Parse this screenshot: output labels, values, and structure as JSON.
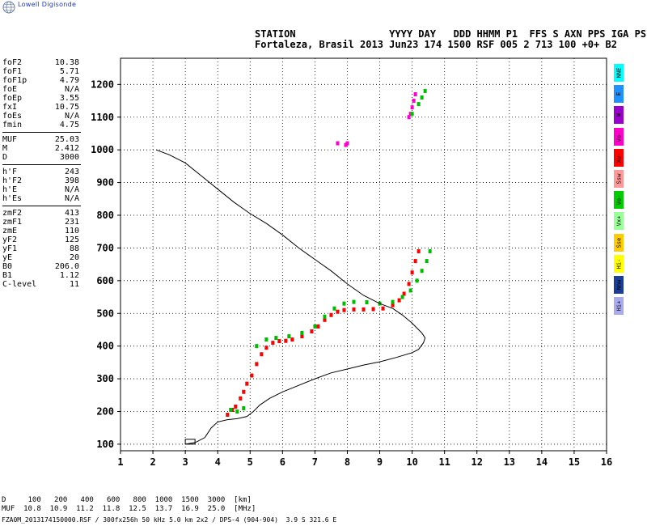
{
  "logo": {
    "text": "Lowell Digisonde"
  },
  "header": {
    "line1": "STATION                YYYY DAY   DDD HHMM P1  FFS S AXN PPS IGA PS",
    "line2": "Fortaleza, Brasil 2013 Jun23 174 1500 RSF 005 2 713 100 +0+ B2"
  },
  "parameters": [
    {
      "name": "foF2",
      "value": "10.38"
    },
    {
      "name": "foF1",
      "value": "5.71"
    },
    {
      "name": "foF1p",
      "value": "4.79"
    },
    {
      "name": "foE",
      "value": "N/A"
    },
    {
      "name": "foEp",
      "value": "3.55"
    },
    {
      "name": "fxI",
      "value": "10.75"
    },
    {
      "name": "foEs",
      "value": "N/A"
    },
    {
      "name": "fmin",
      "value": "4.75"
    },
    {
      "name": "MUF",
      "value": "25.03"
    },
    {
      "name": "M",
      "value": "2.412"
    },
    {
      "name": "D",
      "value": "3000"
    },
    {
      "name": "h'F",
      "value": "243"
    },
    {
      "name": "h'F2",
      "value": "398"
    },
    {
      "name": "h'E",
      "value": "N/A"
    },
    {
      "name": "h'Es",
      "value": "N/A"
    },
    {
      "name": "zmF2",
      "value": "413"
    },
    {
      "name": "zmF1",
      "value": "231"
    },
    {
      "name": "zmE",
      "value": "110"
    },
    {
      "name": "yF2",
      "value": "125"
    },
    {
      "name": "yF1",
      "value": "88"
    },
    {
      "name": "yE",
      "value": "20"
    },
    {
      "name": "B0",
      "value": "206.0"
    },
    {
      "name": "B1",
      "value": "1.12"
    },
    {
      "name": "C-level",
      "value": "11"
    }
  ],
  "legend": [
    {
      "label": "NNE",
      "color": "#00ffff"
    },
    {
      "label": "E",
      "color": "#1e90ff"
    },
    {
      "label": "W",
      "color": "#9900cc"
    },
    {
      "label": "Vo-",
      "color": "#ff00cc"
    },
    {
      "label": "Xo-",
      "color": "#ff0000"
    },
    {
      "label": "Ssw",
      "color": "#ff9999"
    },
    {
      "label": "Vo-",
      "color": "#00cc00"
    },
    {
      "label": "Vx+",
      "color": "#99ff99"
    },
    {
      "label": "Sse",
      "color": "#ffcc00"
    },
    {
      "label": "Hi-",
      "color": "#ffff00"
    },
    {
      "label": "Nnw",
      "color": "#1a3d99"
    },
    {
      "label": "Hi+",
      "color": "#aaaaee"
    }
  ],
  "footer": {
    "line1": "D     100   200   400   600   800  1000  1500  3000  [km]",
    "line2": "MUF  10.8  10.9  11.2  11.8  12.5  13.7  16.9  25.0  [MHz]",
    "line3": "FZA0M_2013174150000.RSF / 300fx256h 50 kHz 5.0 km 2x2 / DPS-4 (904-904)  3.9 S 321.6 E"
  },
  "chart_data": {
    "type": "scatter",
    "xlim": [
      1,
      16
    ],
    "ylim": [
      80,
      1280
    ],
    "x_ticks": [
      1,
      2,
      3,
      4,
      5,
      6,
      7,
      8,
      9,
      10,
      11,
      12,
      13,
      14,
      15,
      16
    ],
    "y_ticks": [
      100,
      200,
      300,
      400,
      500,
      600,
      700,
      800,
      900,
      1000,
      1100,
      1200
    ],
    "grid": true,
    "series": [
      {
        "color": "#ff0000",
        "kind": "o-trace",
        "points": [
          [
            4.3,
            190
          ],
          [
            4.45,
            205
          ],
          [
            4.55,
            215
          ],
          [
            4.7,
            240
          ],
          [
            4.8,
            260
          ],
          [
            4.9,
            285
          ],
          [
            5.05,
            310
          ],
          [
            5.2,
            345
          ],
          [
            5.35,
            375
          ],
          [
            5.5,
            395
          ],
          [
            5.7,
            410
          ],
          [
            5.9,
            415
          ],
          [
            6.1,
            416
          ],
          [
            6.3,
            420
          ],
          [
            6.6,
            430
          ],
          [
            6.9,
            445
          ],
          [
            7.1,
            460
          ],
          [
            7.3,
            480
          ],
          [
            7.5,
            495
          ],
          [
            7.7,
            505
          ],
          [
            7.9,
            510
          ],
          [
            8.2,
            512
          ],
          [
            8.5,
            512
          ],
          [
            8.8,
            513
          ],
          [
            9.1,
            515
          ],
          [
            9.4,
            525
          ],
          [
            9.6,
            540
          ],
          [
            9.75,
            560
          ],
          [
            9.9,
            590
          ],
          [
            10.0,
            625
          ],
          [
            10.1,
            660
          ],
          [
            10.2,
            690
          ]
        ]
      },
      {
        "color": "#ff00cc",
        "kind": "o-trace-high",
        "points": [
          [
            9.9,
            1100
          ],
          [
            9.95,
            1110
          ],
          [
            10.0,
            1130
          ],
          [
            10.05,
            1150
          ],
          [
            10.1,
            1170
          ],
          [
            7.7,
            1020
          ],
          [
            7.95,
            1015
          ],
          [
            8.0,
            1020
          ]
        ]
      },
      {
        "color": "#00bb00",
        "kind": "x-trace",
        "points": [
          [
            4.4,
            205
          ],
          [
            4.6,
            200
          ],
          [
            4.8,
            210
          ],
          [
            5.2,
            400
          ],
          [
            5.5,
            420
          ],
          [
            5.8,
            425
          ],
          [
            6.2,
            430
          ],
          [
            6.6,
            440
          ],
          [
            7.0,
            460
          ],
          [
            7.3,
            490
          ],
          [
            7.6,
            515
          ],
          [
            7.9,
            530
          ],
          [
            8.2,
            535
          ],
          [
            8.6,
            534
          ],
          [
            9.0,
            530
          ],
          [
            9.4,
            535
          ],
          [
            9.7,
            550
          ],
          [
            9.95,
            570
          ],
          [
            10.15,
            600
          ],
          [
            10.3,
            630
          ],
          [
            10.45,
            660
          ],
          [
            10.55,
            690
          ],
          [
            10.0,
            1110
          ],
          [
            10.2,
            1140
          ],
          [
            10.3,
            1160
          ],
          [
            10.4,
            1180
          ]
        ]
      },
      {
        "color": "#000000",
        "kind": "profile",
        "points": [
          [
            3.0,
            100
          ],
          [
            3.3,
            105
          ],
          [
            3.6,
            120
          ],
          [
            3.8,
            150
          ],
          [
            4.0,
            168
          ],
          [
            4.3,
            175
          ],
          [
            4.6,
            178
          ],
          [
            4.9,
            185
          ],
          [
            5.1,
            200
          ],
          [
            5.3,
            220
          ],
          [
            5.6,
            240
          ],
          [
            6.0,
            260
          ],
          [
            6.5,
            280
          ],
          [
            7.0,
            300
          ],
          [
            7.5,
            318
          ],
          [
            8.0,
            330
          ],
          [
            8.5,
            342
          ],
          [
            9.0,
            352
          ],
          [
            9.5,
            365
          ],
          [
            10.0,
            380
          ],
          [
            10.2,
            390
          ],
          [
            10.35,
            410
          ],
          [
            10.4,
            425
          ],
          [
            10.3,
            440
          ],
          [
            10.0,
            470
          ],
          [
            9.7,
            495
          ],
          [
            9.4,
            515
          ],
          [
            9.0,
            530
          ],
          [
            8.5,
            555
          ],
          [
            8.0,
            590
          ],
          [
            7.5,
            630
          ],
          [
            7.0,
            665
          ],
          [
            6.5,
            700
          ],
          [
            6.0,
            740
          ],
          [
            5.5,
            775
          ],
          [
            5.0,
            805
          ],
          [
            4.5,
            840
          ],
          [
            4.0,
            880
          ],
          [
            3.5,
            920
          ],
          [
            3.0,
            960
          ],
          [
            2.5,
            985
          ],
          [
            2.1,
            1000
          ]
        ]
      }
    ]
  }
}
